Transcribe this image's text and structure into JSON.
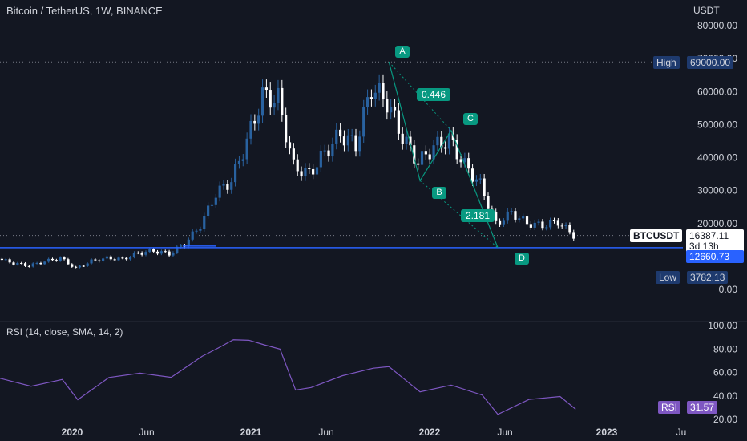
{
  "header": {
    "symbol_title": "Bitcoin / TetherUS, 1W, BINANCE",
    "currency": "USDT",
    "rsi_title": "RSI (14, close, SMA, 14, 2)"
  },
  "price_axis": [
    "80000.00",
    "70000.00",
    "60000.00",
    "50000.00",
    "40000.00",
    "30000.00",
    "20000.00",
    "0.00"
  ],
  "rsi_axis": [
    "100.00",
    "80.00",
    "60.00",
    "40.00",
    "20.00"
  ],
  "time_axis": [
    "2020",
    "Jun",
    "2021",
    "Jun",
    "2022",
    "Jun",
    "2023",
    "Ju"
  ],
  "tags": {
    "high_label": "High",
    "high_value": "69000.00",
    "low_label": "Low",
    "low_value": "3782.13",
    "symbol": "BTCUSDT",
    "last_price": "16387.11",
    "countdown": "3d 13h",
    "level_value": "12660.73",
    "rsi_label": "RSI",
    "rsi_value": "31.57"
  },
  "pattern": {
    "points": [
      "A",
      "B",
      "C",
      "D"
    ],
    "ratio_ab": "0.446",
    "ratio_cd": "2.181"
  },
  "colors": {
    "background": "#131722",
    "up_candle": "#2962a0",
    "down_candle": "#ffffff",
    "pattern": "#089981",
    "level_line": "#2962ff",
    "rsi_line": "#7e57c2",
    "tag_navy": "#1e3a6e"
  },
  "chart_data": [
    {
      "type": "candlestick",
      "title": "Bitcoin / TetherUS, 1W, BINANCE",
      "y_unit": "USDT",
      "ylim": [
        0,
        85000
      ],
      "x_range": [
        "2019-10",
        "2023-02"
      ],
      "approx_weekly_close": [
        [
          "2019-10",
          9300
        ],
        [
          "2019-11",
          8000
        ],
        [
          "2019-12",
          7200
        ],
        [
          "2020-01",
          8500
        ],
        [
          "2020-02",
          9500
        ],
        [
          "2020-03",
          6400
        ],
        [
          "2020-04",
          8600
        ],
        [
          "2020-05",
          9500
        ],
        [
          "2020-06",
          9200
        ],
        [
          "2020-07",
          11000
        ],
        [
          "2020-08",
          11700
        ],
        [
          "2020-09",
          10800
        ],
        [
          "2020-10",
          13800
        ],
        [
          "2020-11",
          19400
        ],
        [
          "2020-12",
          29000
        ],
        [
          "2021-01",
          33000
        ],
        [
          "2021-02",
          45000
        ],
        [
          "2021-03",
          58700
        ],
        [
          "2021-04",
          57700
        ],
        [
          "2021-05",
          37300
        ],
        [
          "2021-06",
          35000
        ],
        [
          "2021-07",
          41500
        ],
        [
          "2021-08",
          47100
        ],
        [
          "2021-09",
          43800
        ],
        [
          "2021-10",
          61300
        ],
        [
          "2021-11",
          57000
        ],
        [
          "2021-12",
          46200
        ],
        [
          "2022-01",
          38500
        ],
        [
          "2022-02",
          43200
        ],
        [
          "2022-03",
          45500
        ],
        [
          "2022-04",
          37700
        ],
        [
          "2022-05",
          31800
        ],
        [
          "2022-06",
          19800
        ],
        [
          "2022-07",
          23300
        ],
        [
          "2022-08",
          20050
        ],
        [
          "2022-09",
          19400
        ],
        [
          "2022-10",
          20500
        ],
        [
          "2022-11",
          16387
        ]
      ],
      "all_time_high": 69000.0,
      "period_low": 3782.13,
      "last_price": 16387.11,
      "horizontal_level": 12660.73,
      "annotations": [
        {
          "label": "A",
          "date": "2021-11",
          "price": 69000
        },
        {
          "label": "B",
          "date": "2022-01",
          "price": 33000
        },
        {
          "label": "C",
          "date": "2022-03",
          "price": 48200
        },
        {
          "label": "D",
          "date": "2022-06",
          "price": 12660.73
        },
        {
          "label": "0.446",
          "between": [
            "A",
            "C"
          ]
        },
        {
          "label": "2.181",
          "between": [
            "B",
            "D"
          ]
        }
      ]
    },
    {
      "type": "line",
      "title": "RSI (14, close, SMA, 14, 2)",
      "ylim": [
        20,
        100
      ],
      "approx_values": [
        [
          "2019-10",
          55
        ],
        [
          "2019-12",
          46
        ],
        [
          "2020-02",
          57
        ],
        [
          "2020-03",
          35
        ],
        [
          "2020-05",
          55
        ],
        [
          "2020-07",
          62
        ],
        [
          "2020-09",
          53
        ],
        [
          "2020-11",
          75
        ],
        [
          "2020-12",
          82
        ],
        [
          "2021-01",
          85
        ],
        [
          "2021-02",
          90
        ],
        [
          "2021-03",
          83
        ],
        [
          "2021-04",
          78
        ],
        [
          "2021-05",
          48
        ],
        [
          "2021-06",
          45
        ],
        [
          "2021-08",
          57
        ],
        [
          "2021-10",
          66
        ],
        [
          "2021-11",
          62
        ],
        [
          "2022-01",
          45
        ],
        [
          "2022-03",
          50
        ],
        [
          "2022-05",
          38
        ],
        [
          "2022-06",
          27
        ],
        [
          "2022-08",
          36
        ],
        [
          "2022-10",
          38
        ],
        [
          "2022-11",
          31.57
        ]
      ],
      "last_value": 31.57
    }
  ]
}
